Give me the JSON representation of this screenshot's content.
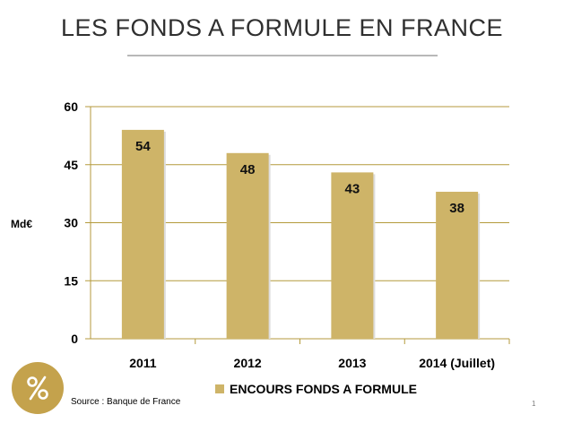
{
  "title": "LES FONDS A FORMULE EN FRANCE",
  "source": "Source : Banque de France",
  "page_number": "1",
  "badge_icon": "percent-icon",
  "colors": {
    "bar": "#ceb468",
    "grid": "#b49a3c",
    "text": "#000000"
  },
  "chart_data": {
    "type": "bar",
    "categories": [
      "2011",
      "2012",
      "2013",
      "2014 (Juillet)"
    ],
    "series": [
      {
        "name": "ENCOURS FONDS A FORMULE",
        "values": [
          54,
          48,
          43,
          38
        ]
      }
    ],
    "data_labels": [
      "54",
      "48",
      "43",
      "38"
    ],
    "ylabel": "Md€",
    "ylim": [
      0,
      60
    ],
    "yticks": [
      0,
      15,
      30,
      45,
      60
    ],
    "grid": true,
    "legend": "bottom"
  }
}
